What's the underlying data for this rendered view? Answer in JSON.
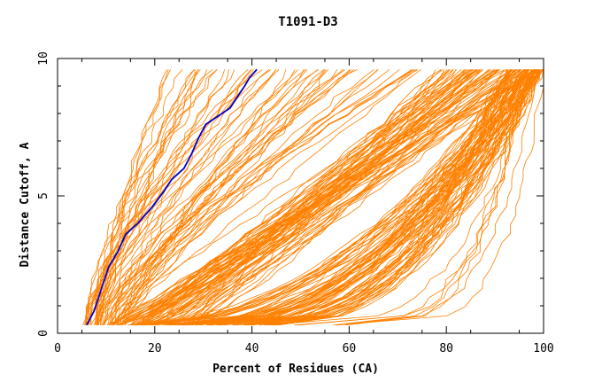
{
  "chart_data": {
    "type": "line",
    "title": "T1091-D3",
    "xlabel": "Percent of Residues (CA)",
    "ylabel": "Distance Cutoff, A",
    "xlim": [
      0,
      100
    ],
    "ylim": [
      0,
      10
    ],
    "xticks": [
      "0",
      "20",
      "40",
      "60",
      "80",
      "100"
    ],
    "yticks": [
      "0",
      "5",
      "10"
    ],
    "grid": false,
    "colors": {
      "series": "#ff8000",
      "highlight": "#0000cc"
    },
    "highlight": {
      "x": [
        6.0,
        7.5,
        9.0,
        10.5,
        12.5,
        14.0,
        16.5,
        19.5,
        22.0,
        23.5,
        26.0,
        27.5,
        29.0,
        30.5,
        33.0,
        35.5,
        37.0,
        38.5,
        39.5,
        41.0
      ],
      "y": [
        0.3,
        0.8,
        1.6,
        2.4,
        3.0,
        3.6,
        4.0,
        4.6,
        5.2,
        5.6,
        6.0,
        6.5,
        7.1,
        7.6,
        7.9,
        8.2,
        8.6,
        9.0,
        9.3,
        9.6
      ]
    },
    "families": [
      {
        "count": 24,
        "x_start": [
          5,
          9
        ],
        "x_end": [
          20,
          44
        ],
        "shape": 1.3
      },
      {
        "count": 34,
        "x_start": [
          7,
          14
        ],
        "x_end": [
          42,
          78
        ],
        "shape": 1.2
      },
      {
        "count": 70,
        "x_start": [
          9,
          28
        ],
        "x_end": [
          78,
          100
        ],
        "shape": 0.9
      },
      {
        "count": 80,
        "x_start": [
          14,
          46
        ],
        "x_end": [
          92,
          100
        ],
        "shape": 0.45
      },
      {
        "count": 7,
        "x_start": [
          40,
          60
        ],
        "x_end": [
          96,
          100
        ],
        "shape": 0.22
      }
    ]
  }
}
